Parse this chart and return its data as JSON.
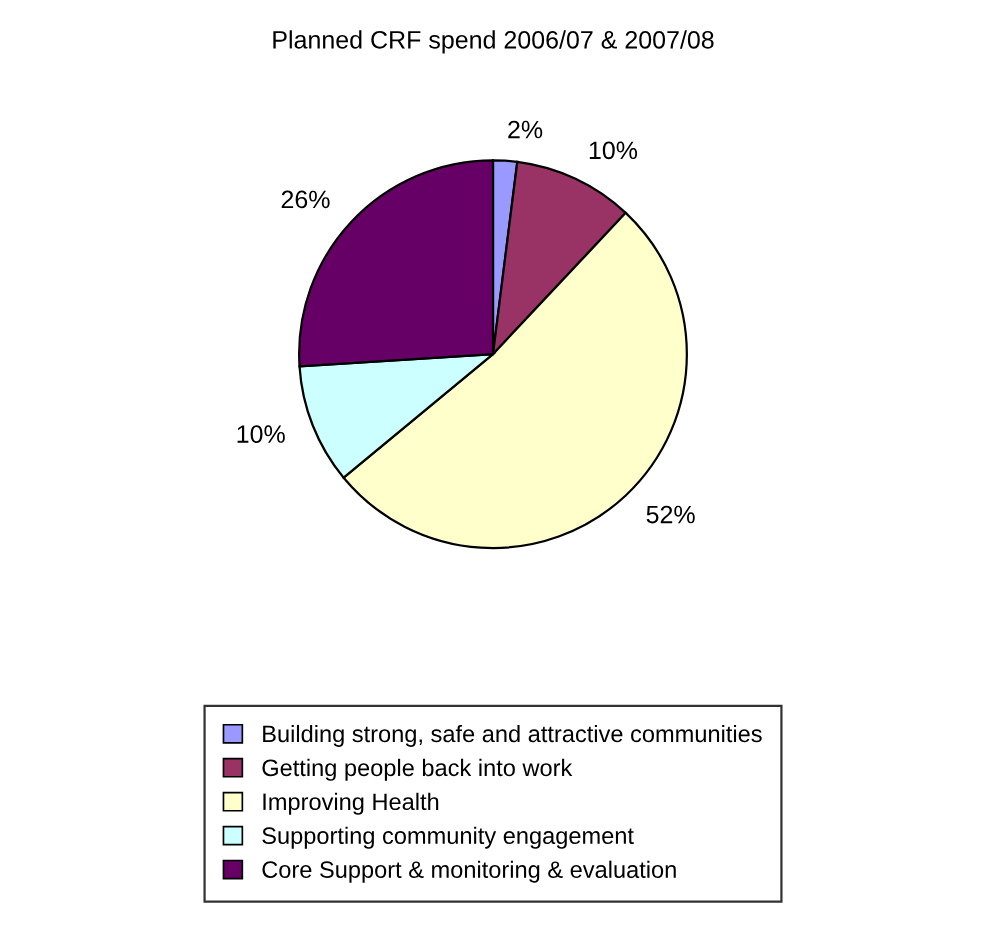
{
  "chart_data": {
    "type": "pie",
    "title": "Planned CRF spend 2006/07 & 2007/08",
    "categories": [
      "Building strong, safe and attractive communities",
      "Getting people back into work",
      "Improving Health",
      "Supporting community engagement",
      "Core Support & monitoring & evaluation"
    ],
    "values": [
      2,
      10,
      52,
      10,
      26
    ],
    "value_labels": [
      "2%",
      "10%",
      "52%",
      "10%",
      "26%"
    ],
    "colors": [
      "#9999ff",
      "#993366",
      "#ffffcc",
      "#ccffff",
      "#660066"
    ],
    "legend": "bottom"
  }
}
